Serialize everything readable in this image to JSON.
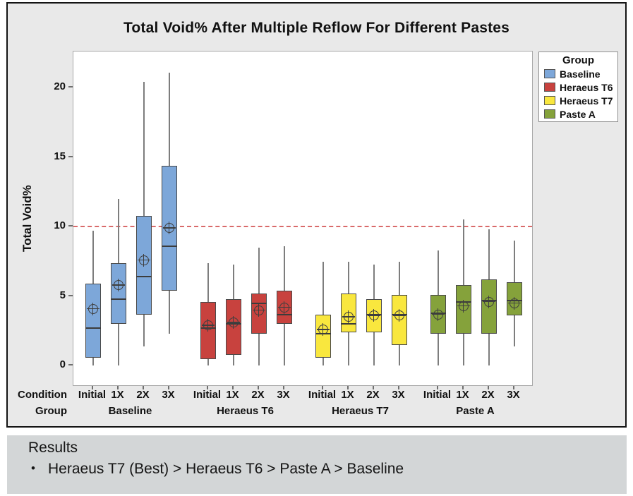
{
  "title": "Total Void% After Multiple Reflow For Different Pastes",
  "axes": {
    "y_label": "Total Void%",
    "y_ticks": [
      0,
      5,
      10,
      15,
      20
    ],
    "row_labels": {
      "condition": "Condition",
      "group": "Group"
    }
  },
  "legend": {
    "title": "Group"
  },
  "results": {
    "heading": "Results",
    "bullet_marker": "•",
    "bullets": [
      "Heraeus T7 (Best) > Heraeus T6 > Paste A > Baseline"
    ]
  },
  "chart_data": {
    "type": "boxplot",
    "title": "Total Void% After Multiple Reflow For Different Pastes",
    "xlabel": "",
    "ylabel": "Total Void%",
    "ylim": [
      -1.5,
      22.6
    ],
    "y_ticks": [
      0,
      5,
      10,
      15,
      20
    ],
    "grid": false,
    "legend_position": "right",
    "reference_line": {
      "value": 10,
      "color": "#d96a6a",
      "style": "dashed"
    },
    "conditions": [
      "Initial",
      "1X",
      "2X",
      "3X"
    ],
    "groups": [
      {
        "name": "Baseline",
        "color": "#7DA7D9",
        "boxes": [
          {
            "condition": "Initial",
            "whisker_low": 0,
            "q1": 0.6,
            "median": 2.7,
            "q3": 5.9,
            "whisker_high": 9.7,
            "mean": 4.1
          },
          {
            "condition": "1X",
            "whisker_low": 0,
            "q1": 3.0,
            "median": 4.8,
            "q3": 7.4,
            "whisker_high": 12.0,
            "mean": 5.8
          },
          {
            "condition": "2X",
            "whisker_low": 1.4,
            "q1": 3.7,
            "median": 6.4,
            "q3": 10.8,
            "whisker_high": 20.4,
            "mean": 7.6
          },
          {
            "condition": "3X",
            "whisker_low": 2.3,
            "q1": 5.4,
            "median": 8.6,
            "q3": 14.4,
            "whisker_high": 21.1,
            "mean": 9.9
          }
        ]
      },
      {
        "name": "Heraeus T6",
        "color": "#C8423E",
        "boxes": [
          {
            "condition": "Initial",
            "whisker_low": 0,
            "q1": 0.5,
            "median": 2.7,
            "q3": 4.6,
            "whisker_high": 7.4,
            "mean": 2.9
          },
          {
            "condition": "1X",
            "whisker_low": 0,
            "q1": 0.8,
            "median": 3.0,
            "q3": 4.8,
            "whisker_high": 7.3,
            "mean": 3.1
          },
          {
            "condition": "2X",
            "whisker_low": 0,
            "q1": 2.3,
            "median": 4.5,
            "q3": 5.2,
            "whisker_high": 8.5,
            "mean": 4.0
          },
          {
            "condition": "3X",
            "whisker_low": 0,
            "q1": 3.0,
            "median": 3.7,
            "q3": 5.4,
            "whisker_high": 8.6,
            "mean": 4.2
          }
        ]
      },
      {
        "name": "Heraeus T7",
        "color": "#F9E73E",
        "boxes": [
          {
            "condition": "Initial",
            "whisker_low": 0,
            "q1": 0.6,
            "median": 2.3,
            "q3": 3.7,
            "whisker_high": 7.5,
            "mean": 2.6
          },
          {
            "condition": "1X",
            "whisker_low": 0,
            "q1": 2.4,
            "median": 3.0,
            "q3": 5.2,
            "whisker_high": 7.5,
            "mean": 3.5
          },
          {
            "condition": "2X",
            "whisker_low": 0,
            "q1": 2.4,
            "median": 3.7,
            "q3": 4.8,
            "whisker_high": 7.3,
            "mean": 3.6
          },
          {
            "condition": "3X",
            "whisker_low": 0,
            "q1": 1.5,
            "median": 3.7,
            "q3": 5.1,
            "whisker_high": 7.5,
            "mean": 3.6
          }
        ]
      },
      {
        "name": "Paste A",
        "color": "#85A23B",
        "boxes": [
          {
            "condition": "Initial",
            "whisker_low": 0,
            "q1": 2.3,
            "median": 3.8,
            "q3": 5.1,
            "whisker_high": 8.3,
            "mean": 3.7
          },
          {
            "condition": "1X",
            "whisker_low": 0,
            "q1": 2.3,
            "median": 4.6,
            "q3": 5.8,
            "whisker_high": 10.5,
            "mean": 4.3
          },
          {
            "condition": "2X",
            "whisker_low": 0,
            "q1": 2.3,
            "median": 4.7,
            "q3": 6.2,
            "whisker_high": 9.8,
            "mean": 4.6
          },
          {
            "condition": "3X",
            "whisker_low": 1.4,
            "q1": 3.6,
            "median": 4.7,
            "q3": 6.0,
            "whisker_high": 9.0,
            "mean": 4.5
          }
        ]
      }
    ]
  }
}
